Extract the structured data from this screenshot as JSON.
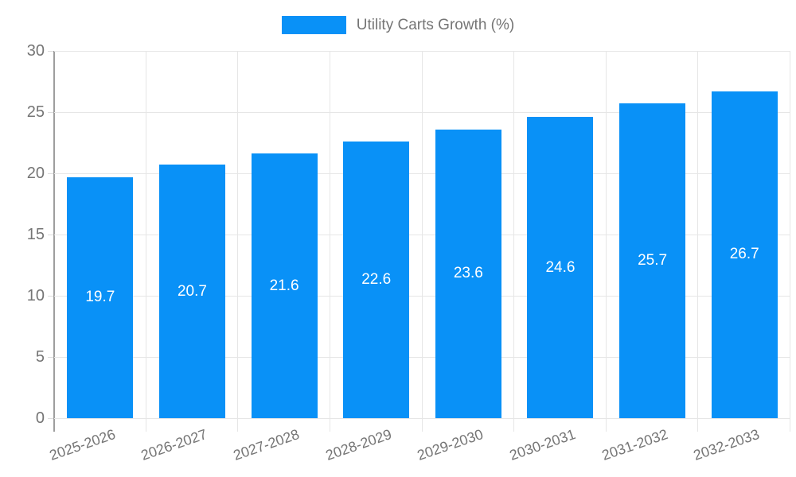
{
  "chart_data": {
    "type": "bar",
    "title": "",
    "categories": [
      "2025-2026",
      "2026-2027",
      "2027-2028",
      "2028-2029",
      "2029-2030",
      "2030-2031",
      "2031-2032",
      "2032-2033"
    ],
    "series": [
      {
        "name": "Utility Carts Growth (%)",
        "values": [
          19.7,
          20.7,
          21.6,
          22.6,
          23.6,
          24.6,
          25.7,
          26.7
        ]
      }
    ],
    "value_labels": [
      "19.7",
      "20.7",
      "21.6",
      "22.6",
      "23.6",
      "24.6",
      "25.7",
      "26.7"
    ],
    "xlabel": "",
    "ylabel": "",
    "ylim": [
      0,
      30
    ],
    "yticks": [
      0,
      5,
      10,
      15,
      20,
      25,
      30
    ],
    "ytick_labels": [
      "0",
      "5",
      "10",
      "15",
      "20",
      "25",
      "30"
    ],
    "grid": true,
    "legend_position": "top"
  },
  "colors": {
    "bar": "#0991f7",
    "grid": "#e6e6e6",
    "axis_line": "#9e9e9e",
    "text": "#757575",
    "bar_label": "#ffffff",
    "background": "#ffffff"
  }
}
